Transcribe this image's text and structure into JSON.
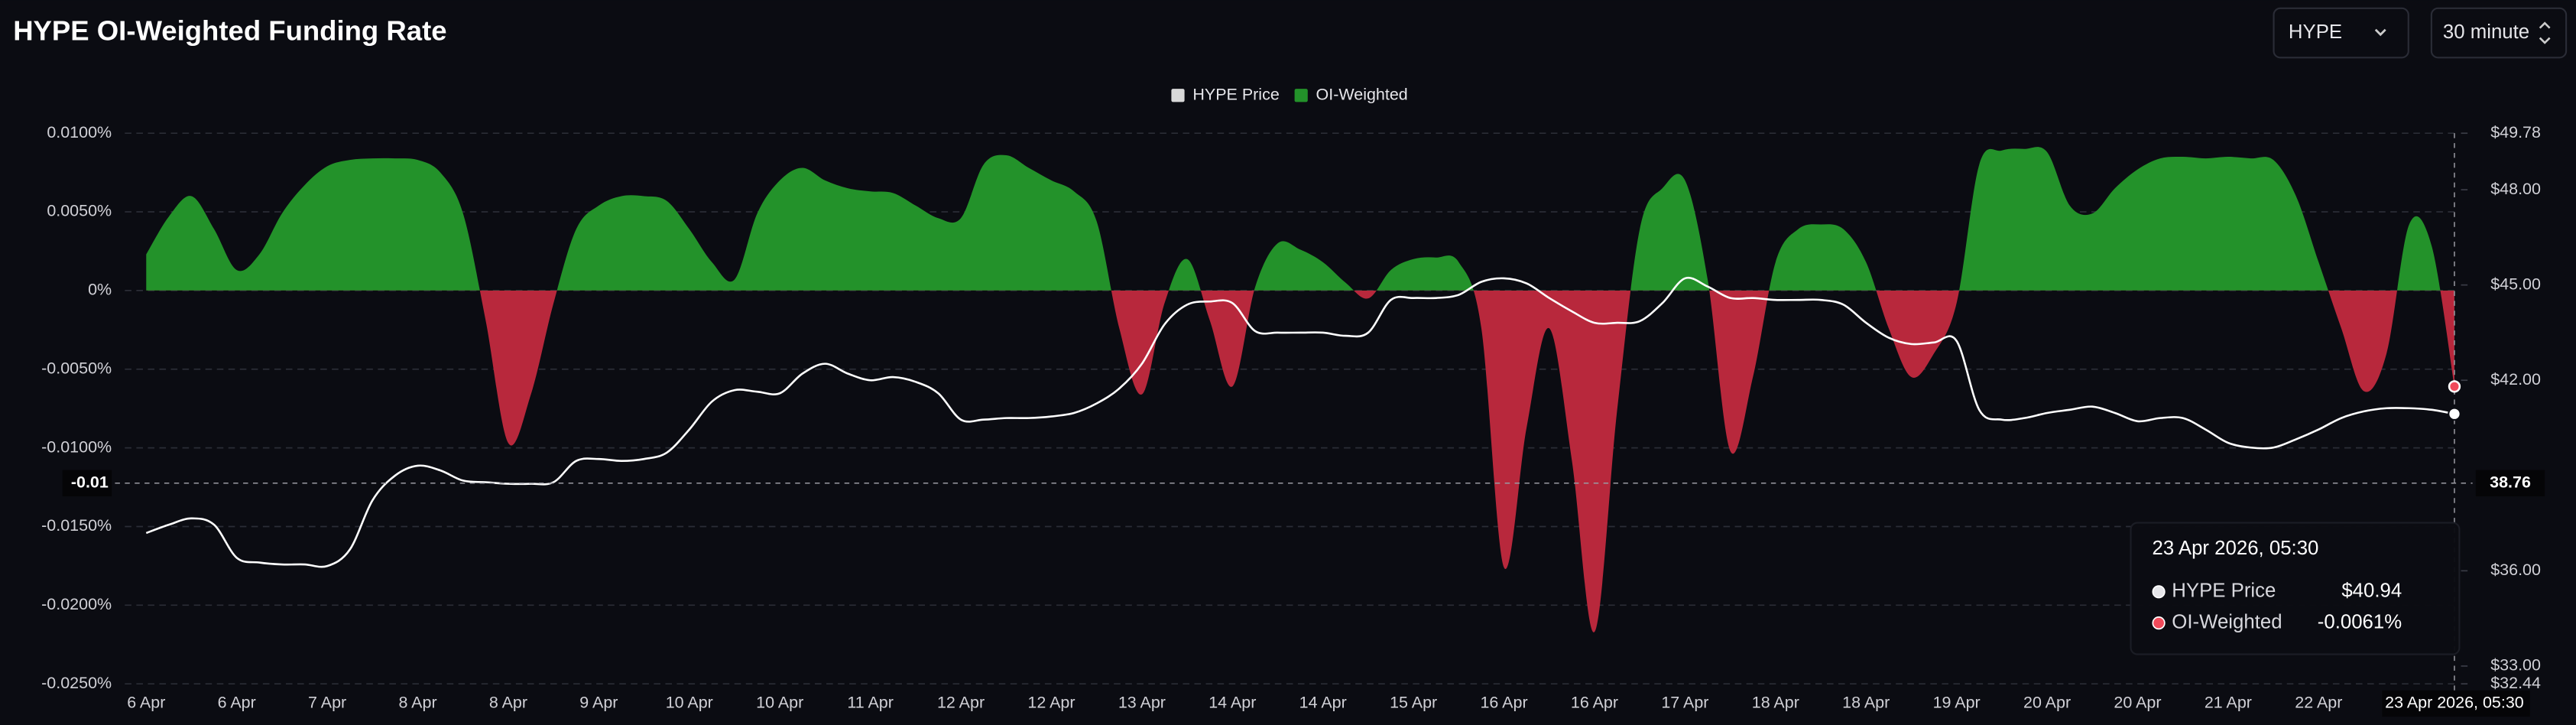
{
  "chart_data": {
    "type": "combo",
    "title": "HYPE OI-Weighted Funding Rate",
    "controls": [
      "HYPE",
      "30 minute"
    ],
    "categories": [
      "6 Apr",
      null,
      null,
      null,
      "6 Apr",
      null,
      null,
      null,
      "7 Apr",
      null,
      null,
      null,
      "8 Apr",
      null,
      null,
      null,
      "8 Apr",
      null,
      null,
      null,
      "9 Apr",
      null,
      null,
      null,
      "10 Apr",
      null,
      null,
      null,
      "10 Apr",
      null,
      null,
      null,
      "11 Apr",
      null,
      null,
      null,
      "12 Apr",
      null,
      null,
      null,
      "12 Apr",
      null,
      null,
      null,
      "13 Apr",
      null,
      null,
      null,
      "14 Apr",
      null,
      null,
      null,
      "14 Apr",
      null,
      null,
      null,
      "15 Apr",
      null,
      null,
      null,
      "16 Apr",
      null,
      null,
      null,
      "16 Apr",
      null,
      null,
      null,
      "17 Apr",
      null,
      null,
      null,
      "18 Apr",
      null,
      null,
      null,
      "18 Apr",
      null,
      null,
      null,
      "19 Apr",
      null,
      null,
      null,
      "20 Apr",
      null,
      null,
      null,
      "20 Apr",
      null,
      null,
      null,
      "21 Apr",
      null,
      null,
      null,
      "22 Apr",
      null,
      null,
      null,
      null,
      null,
      "23 Apr 2026, 05:30"
    ],
    "series": [
      {
        "name": "HYPE Price",
        "type": "line",
        "axis": "y2",
        "color": "#ffffff",
        "legend_color": "#d9d9d9",
        "values": [
          37.19,
          37.45,
          37.65,
          37.45,
          36.41,
          36.26,
          36.2,
          36.2,
          36.15,
          36.67,
          38.22,
          39.0,
          39.31,
          39.16,
          38.84,
          38.79,
          38.74,
          38.74,
          38.79,
          39.46,
          39.52,
          39.46,
          39.52,
          39.72,
          40.45,
          41.33,
          41.69,
          41.64,
          41.59,
          42.21,
          42.52,
          42.21,
          42.0,
          42.1,
          41.95,
          41.59,
          40.76,
          40.76,
          40.81,
          40.81,
          40.86,
          40.97,
          41.27,
          41.74,
          42.52,
          43.76,
          44.38,
          44.48,
          44.43,
          43.55,
          43.5,
          43.5,
          43.5,
          43.4,
          43.5,
          44.53,
          44.59,
          44.59,
          44.69,
          45.1,
          45.21,
          45.05,
          44.59,
          44.17,
          43.81,
          43.81,
          43.86,
          44.43,
          45.21,
          44.95,
          44.59,
          44.59,
          44.53,
          44.53,
          44.53,
          44.38,
          43.81,
          43.34,
          43.14,
          43.19,
          43.24,
          41.07,
          40.76,
          40.81,
          40.97,
          41.07,
          41.17,
          40.97,
          40.71,
          40.81,
          40.81,
          40.45,
          40.03,
          39.88,
          39.88,
          40.14,
          40.45,
          40.81,
          41.02,
          41.12,
          41.12,
          41.07,
          40.94
        ]
      },
      {
        "name": "OI-Weighted",
        "type": "area",
        "color": "#23922a",
        "negative_color": "#b8283c",
        "values": [
          0.0023,
          0.0047,
          0.006,
          0.0039,
          0.0013,
          0.0023,
          0.0049,
          0.0067,
          0.0079,
          0.0083,
          0.0084,
          0.0084,
          0.0083,
          0.0075,
          0.0049,
          -0.0019,
          -0.0097,
          -0.0066,
          -0.0008,
          0.0039,
          0.0054,
          0.006,
          0.006,
          0.0057,
          0.0039,
          0.0018,
          0.0007,
          0.0049,
          0.007,
          0.0078,
          0.007,
          0.0065,
          0.0063,
          0.0062,
          0.0054,
          0.0046,
          0.0046,
          0.008,
          0.0086,
          0.0078,
          0.007,
          0.0063,
          0.0044,
          -0.0024,
          -0.0066,
          -0.0008,
          0.002,
          -0.0019,
          -0.0061,
          0.0002,
          0.003,
          0.0026,
          0.0018,
          0.0005,
          -0.0005,
          0.0013,
          0.002,
          0.0021,
          0.0018,
          -0.0024,
          -0.0176,
          -0.0087,
          -0.0024,
          -0.0108,
          -0.0217,
          -0.0076,
          0.0039,
          0.0065,
          0.007,
          0.0007,
          -0.0102,
          -0.0055,
          0.0018,
          0.0039,
          0.0042,
          0.0039,
          0.0018,
          -0.0024,
          -0.0055,
          -0.004,
          -0.0008,
          0.008,
          0.0089,
          0.009,
          0.0088,
          0.0054,
          0.0049,
          0.0065,
          0.0077,
          0.0084,
          0.0085,
          0.0084,
          0.0085,
          0.0084,
          0.0083,
          0.006,
          0.0018,
          -0.0024,
          -0.0064,
          -0.004,
          0.0042,
          0.0028,
          -0.0061
        ]
      }
    ],
    "ylim": [
      -0.025,
      0.01
    ],
    "yticks": [
      {
        "value": 0.01,
        "label": "0.0100%"
      },
      {
        "value": 0.005,
        "label": "0.0050%"
      },
      {
        "value": 0,
        "label": "0%"
      },
      {
        "value": -0.005,
        "label": "-0.0050%"
      },
      {
        "value": -0.01,
        "label": "-0.0100%"
      },
      {
        "value": -0.015,
        "label": "-0.0150%"
      },
      {
        "value": -0.02,
        "label": "-0.0200%"
      },
      {
        "value": -0.025,
        "label": "-0.0250%"
      }
    ],
    "y2lim": [
      32.44,
      49.78
    ],
    "y2ticks": [
      {
        "value": 49.78,
        "label": "$49.78"
      },
      {
        "value": 48,
        "label": "$48.00"
      },
      {
        "value": 45,
        "label": "$45.00"
      },
      {
        "value": 42,
        "label": "$42.00"
      },
      {
        "value": 36,
        "label": "$36.00"
      },
      {
        "value": 33,
        "label": "$33.00"
      },
      {
        "value": 32.44,
        "label": "$32.44"
      }
    ],
    "grid": true,
    "legend": "top",
    "crosshair": {
      "y_label": "-0.01",
      "y2": 38.76
    },
    "tooltip_values": [
      "$40.94",
      "-0.0061%"
    ]
  }
}
